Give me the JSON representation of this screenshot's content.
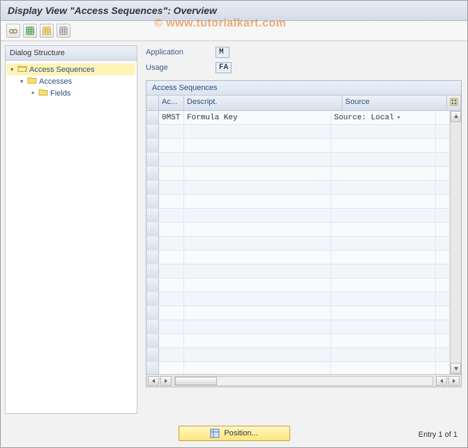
{
  "title": "Display View \"Access Sequences\": Overview",
  "watermark": "© www.tutorialkart.com",
  "toolbar": {
    "icons": [
      "glasses-icon",
      "table-green-icon",
      "table-yellow-icon",
      "table-grey-icon"
    ]
  },
  "tree": {
    "header": "Dialog Structure",
    "items": [
      {
        "label": "Access Sequences",
        "level": 0,
        "selected": true,
        "expanded": true,
        "folder_open": true
      },
      {
        "label": "Accesses",
        "level": 1,
        "selected": false,
        "expanded": true,
        "folder_open": false
      },
      {
        "label": "Fields",
        "level": 2,
        "selected": false,
        "expanded": false,
        "folder_open": false
      }
    ]
  },
  "fields": {
    "application": {
      "label": "Application",
      "value": "M"
    },
    "usage": {
      "label": "Usage",
      "value": "FA"
    }
  },
  "grid": {
    "title": "Access Sequences",
    "columns": {
      "ac": "Ac...",
      "descript": "Descript.",
      "source": "Source"
    },
    "rows": [
      {
        "ac": "0MST",
        "descript": "Formula Key",
        "source": "Source: Local"
      }
    ],
    "empty_rows": 18
  },
  "footer": {
    "position_label": "Position...",
    "entry_text": "Entry 1 of 1"
  },
  "colors": {
    "title_bg_top": "#e6ecf4",
    "title_bg_bottom": "#d4dce8",
    "panel_border": "#c0c8d4",
    "highlight": "#fef3b8",
    "button_bg_top": "#fff6c8",
    "button_bg_bottom": "#fde77a"
  }
}
